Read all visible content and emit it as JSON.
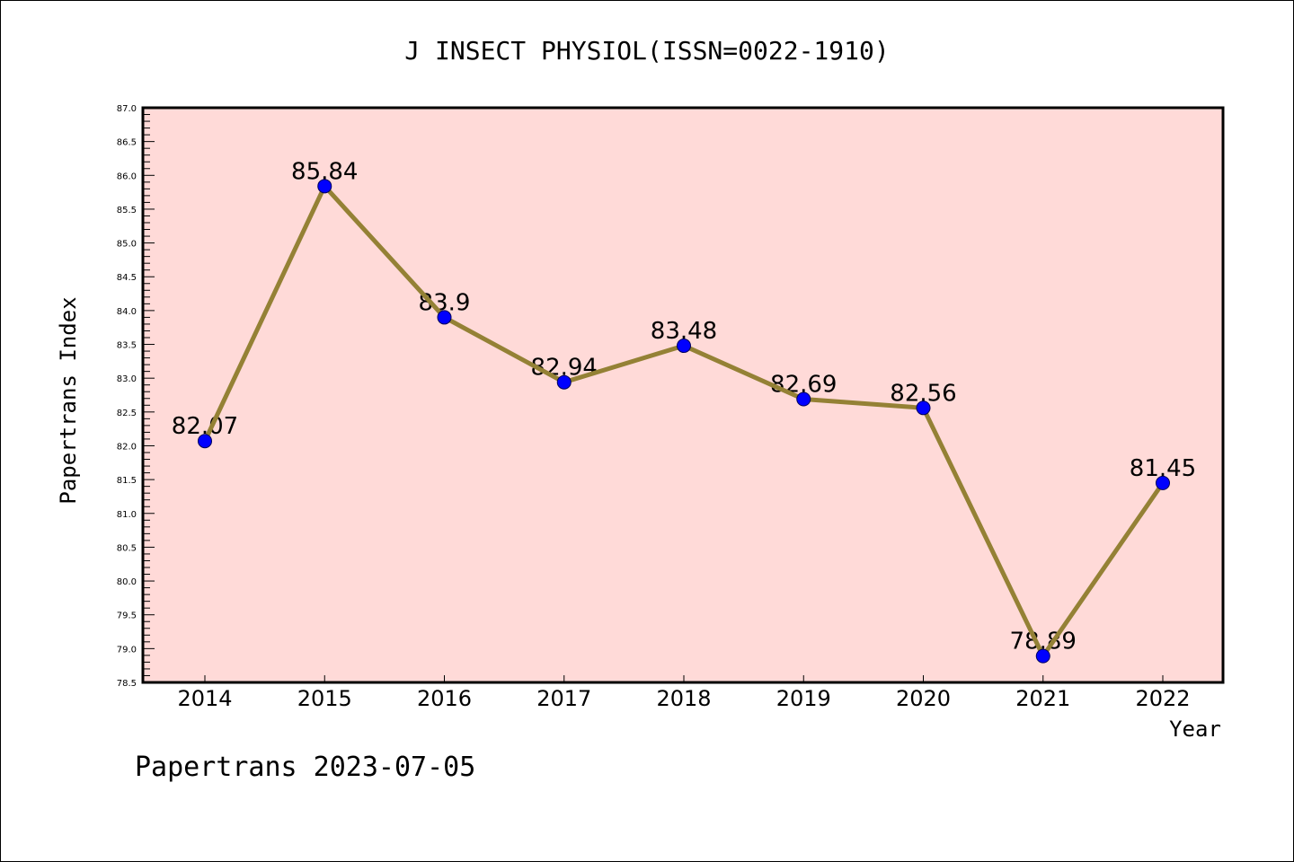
{
  "chart_data": {
    "type": "line",
    "title": "J INSECT PHYSIOL(ISSN=0022-1910)",
    "xlabel": "Year",
    "ylabel": "Papertrans Index",
    "categories": [
      "2014",
      "2015",
      "2016",
      "2017",
      "2018",
      "2019",
      "2020",
      "2021",
      "2022"
    ],
    "series": [
      {
        "name": "Papertrans Index",
        "values": [
          82.07,
          85.84,
          83.9,
          82.94,
          83.48,
          82.69,
          82.56,
          78.89,
          81.45
        ],
        "labels": [
          "82.07",
          "85.84",
          "83.9",
          "82.94",
          "83.48",
          "82.69",
          "82.56",
          "78.89",
          "81.45"
        ],
        "line_color": "#948135",
        "marker_color": "#0000FF"
      }
    ],
    "ylim": [
      78.5,
      87.0
    ],
    "y_major_step": 0.5,
    "y_minor_step": 0.1,
    "yticks": [
      "78.5",
      "79.0",
      "79.5",
      "80.0",
      "80.5",
      "81.0",
      "81.5",
      "82.0",
      "82.5",
      "83.0",
      "83.5",
      "84.0",
      "84.5",
      "85.0",
      "85.5",
      "86.0",
      "86.5",
      "87.0"
    ],
    "grid": false,
    "legend": "none",
    "plot_background": "#FFDAD8",
    "footer": "Papertrans 2023-07-05"
  }
}
